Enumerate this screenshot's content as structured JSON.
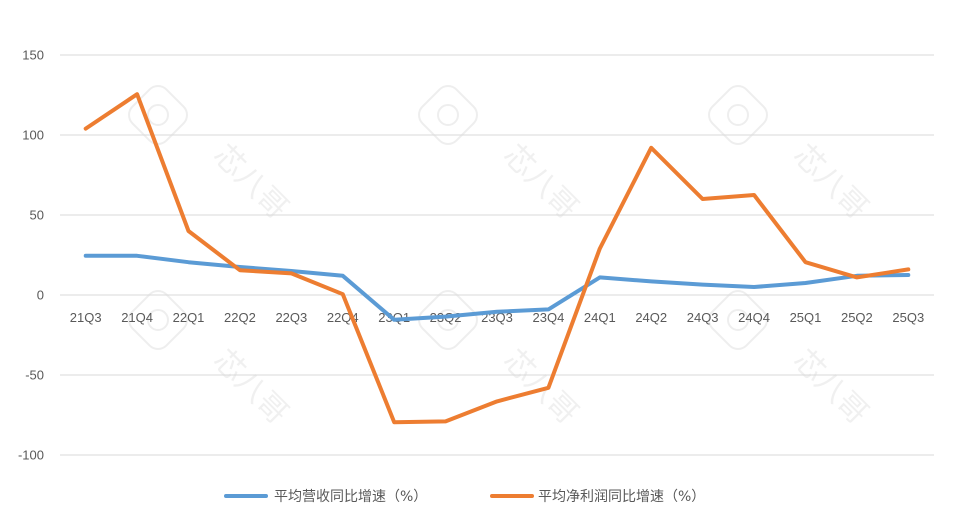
{
  "chart_data": {
    "type": "line",
    "title": "",
    "xlabel": "",
    "ylabel": "",
    "categories": [
      "21Q3",
      "21Q4",
      "22Q1",
      "22Q2",
      "22Q3",
      "22Q4",
      "23Q1",
      "23Q2",
      "23Q3",
      "23Q4",
      "24Q1",
      "24Q2",
      "24Q3",
      "24Q4",
      "25Q1",
      "25Q2",
      "25Q3"
    ],
    "ylim": [
      -100,
      150
    ],
    "yticks": [
      150,
      100,
      50,
      0,
      -50,
      -100
    ],
    "grid": true,
    "legend": "bottom",
    "series": [
      {
        "name": "平均营收同比增速（%）",
        "color": "#5B9BD5",
        "values": [
          24.5,
          24.5,
          20.5,
          17.5,
          15,
          12,
          -15.5,
          -13.5,
          -10.5,
          -9,
          11,
          8.5,
          6.5,
          5,
          7.5,
          12,
          12.5
        ]
      },
      {
        "name": "平均净利润同比增速（%）",
        "color": "#ED7D31",
        "values": [
          104,
          125.5,
          40,
          15.5,
          13.5,
          0.5,
          -79.5,
          -79,
          -66.5,
          -58,
          29,
          92,
          60,
          62.5,
          20.5,
          11,
          16
        ]
      }
    ]
  },
  "watermark": {
    "text": "芯八哥"
  }
}
